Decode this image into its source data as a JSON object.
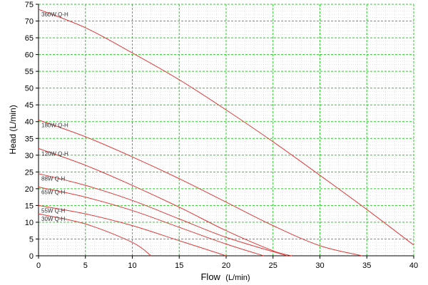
{
  "chart_data": {
    "type": "line",
    "xlabel": "Flow",
    "xlabel_unit": "(L/min)",
    "ylabel": "Head (L/min)",
    "xlim": [
      0,
      40
    ],
    "ylim": [
      0,
      75
    ],
    "x_ticks": [
      0,
      5,
      10,
      15,
      20,
      25,
      30,
      35,
      40
    ],
    "y_ticks": [
      0,
      5,
      10,
      15,
      20,
      25,
      30,
      35,
      40,
      45,
      50,
      55,
      60,
      65,
      70,
      75
    ],
    "grid": true,
    "colors": {
      "curve": "#e23a3a",
      "major_grid": "#2ecc2e",
      "minor_grid": "#c8c8c8",
      "axis": "#000000"
    },
    "series": [
      {
        "name": "360W Q-H",
        "x": [
          0,
          5,
          10,
          15,
          20,
          25,
          30,
          35,
          40
        ],
        "y": [
          73.5,
          68,
          60.5,
          52.5,
          43.5,
          34,
          24,
          13.8,
          3.2
        ]
      },
      {
        "name": "180W Q-H",
        "x": [
          0,
          5,
          10,
          15,
          20,
          25,
          30,
          34.5
        ],
        "y": [
          40.5,
          35.5,
          29.5,
          23,
          16,
          9,
          3,
          0
        ]
      },
      {
        "name": "120W Q-H",
        "x": [
          0,
          5,
          10,
          15,
          20,
          25,
          27
        ],
        "y": [
          32,
          27,
          21,
          14.5,
          7.5,
          1.5,
          0
        ]
      },
      {
        "name": "88W Q-H",
        "x": [
          0,
          5,
          10,
          15,
          20,
          26.5
        ],
        "y": [
          24.5,
          21,
          16.5,
          11,
          5.5,
          0
        ]
      },
      {
        "name": "65W Q-H",
        "x": [
          0,
          5,
          10,
          15,
          20,
          24
        ],
        "y": [
          20.5,
          17.5,
          13.5,
          8.5,
          3.5,
          0
        ]
      },
      {
        "name": "55W Q-H",
        "x": [
          0,
          5,
          10,
          15,
          20
        ],
        "y": [
          15,
          12.5,
          9,
          4.5,
          0
        ]
      },
      {
        "name": "30W Q-H",
        "x": [
          0,
          5,
          10,
          12
        ],
        "y": [
          12.5,
          9.5,
          4,
          0
        ]
      }
    ]
  }
}
